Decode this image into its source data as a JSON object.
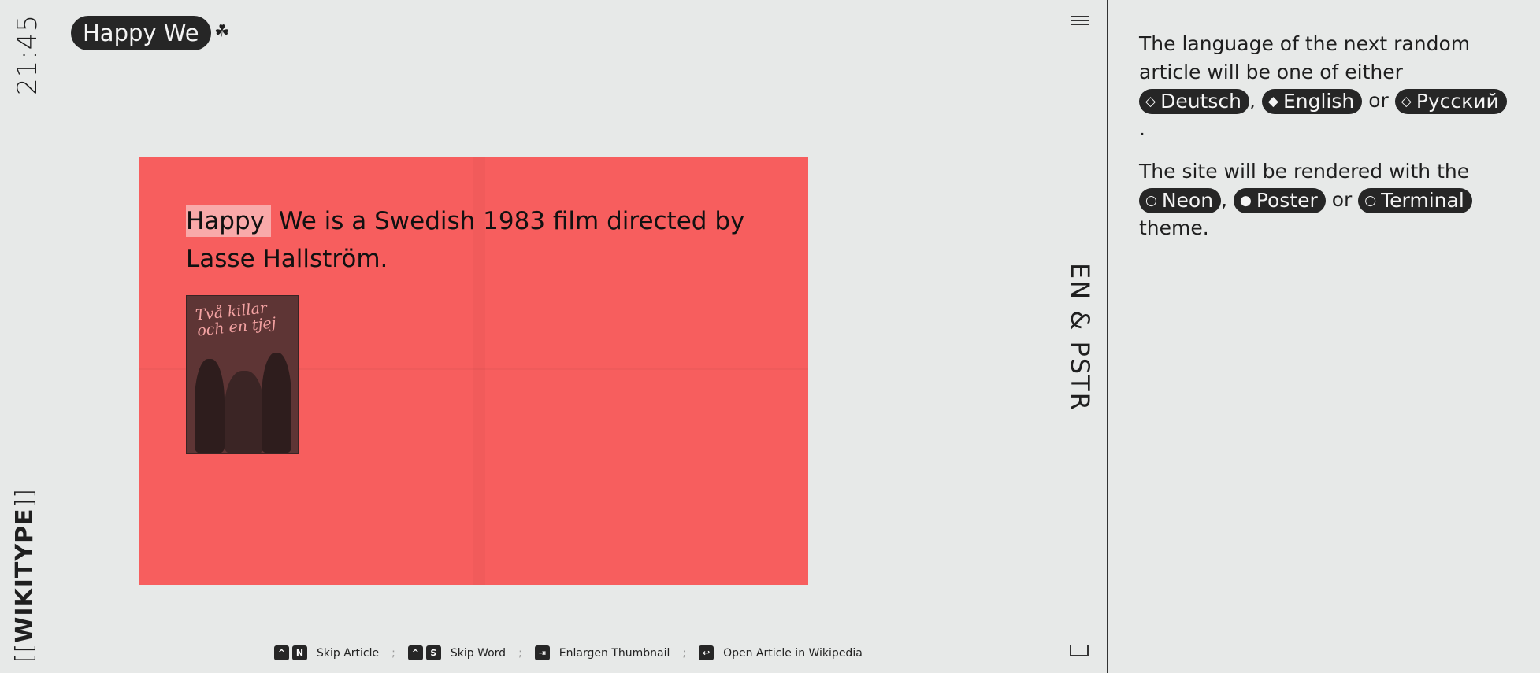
{
  "clock": "21:45",
  "logo": {
    "left": "[[",
    "name": "WIKITYPE",
    "right": "]]"
  },
  "header": {
    "title": "Happy We",
    "badge_icon": "clover-icon"
  },
  "side_label": "EN & PSTR",
  "article": {
    "highlighted_word": "Happy",
    "text_rest": " We is a Swedish 1983 film directed by Lasse Hallström.",
    "thumbnail_title": "Två killar och en tjej",
    "card_color": "#f75e5e"
  },
  "shortcuts": [
    {
      "keys": [
        "^",
        "N"
      ],
      "label": "Skip Article"
    },
    {
      "keys": [
        "^",
        "S"
      ],
      "label": "Skip Word"
    },
    {
      "keys": [
        "⇥"
      ],
      "label": "Enlargen Thumbnail"
    },
    {
      "keys": [
        "↩"
      ],
      "label": "Open Article in Wikipedia"
    }
  ],
  "separator": ";",
  "panel": {
    "language_intro": "The language of the next random article will be one of either",
    "languages": [
      {
        "icon": "◇",
        "label": "Deutsch"
      },
      {
        "icon": "◆",
        "label": "English"
      },
      {
        "icon": "◇",
        "label": "Русский"
      }
    ],
    "comma": ",",
    "or": "or",
    "period": ".",
    "theme_intro": "The site will be rendered with the",
    "themes": [
      {
        "icon": "○",
        "label": "Neon"
      },
      {
        "icon": "●",
        "label": "Poster"
      },
      {
        "icon": "○",
        "label": "Terminal"
      }
    ],
    "theme_outro": "theme."
  }
}
